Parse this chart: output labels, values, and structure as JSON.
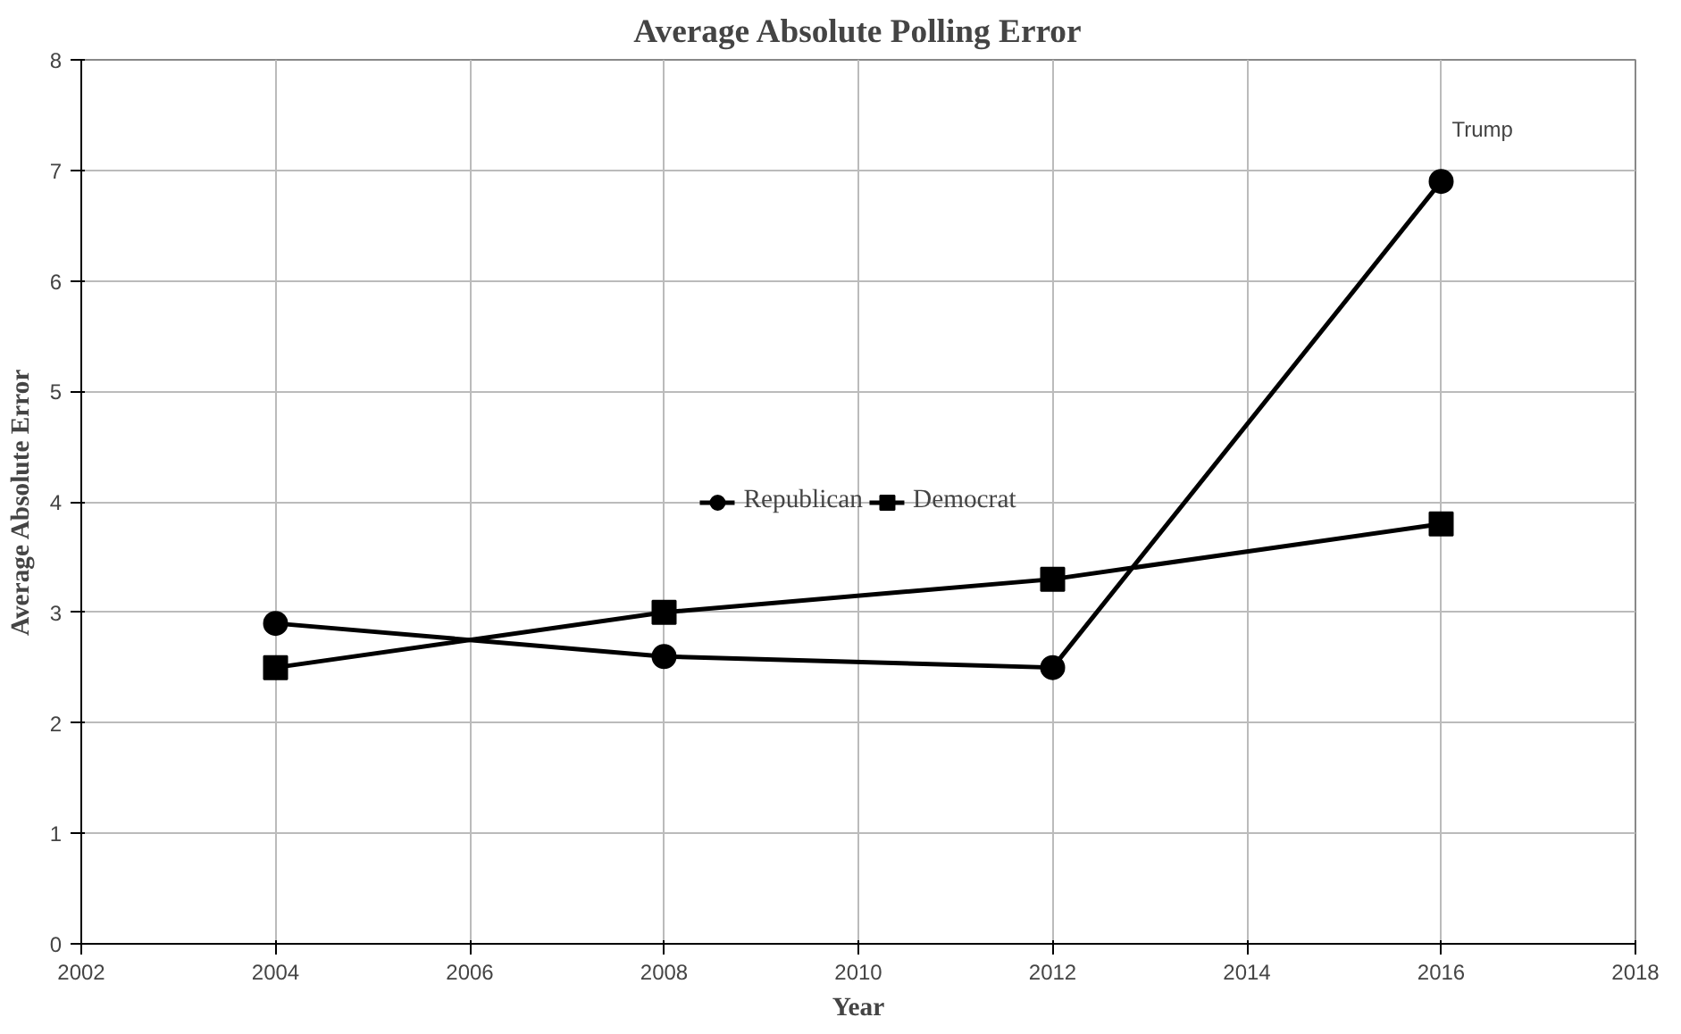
{
  "chart_data": {
    "type": "line",
    "title": "Average Absolute Polling Error",
    "xlabel": "Year",
    "ylabel": "Average Absolute Error",
    "x": [
      2004,
      2008,
      2012,
      2016
    ],
    "series": [
      {
        "name": "Republican",
        "color": "#000000",
        "marker": "circle",
        "values": [
          2.9,
          2.6,
          2.5,
          6.9
        ]
      },
      {
        "name": "Democrat",
        "color": "#000000",
        "marker": "square",
        "values": [
          2.5,
          3.0,
          3.3,
          3.8
        ]
      }
    ],
    "xlim": [
      2002,
      2018
    ],
    "xticks": [
      2002,
      2004,
      2006,
      2008,
      2010,
      2012,
      2014,
      2016,
      2018
    ],
    "ylim": [
      0,
      8
    ],
    "yticks": [
      0,
      1,
      2,
      3,
      4,
      5,
      6,
      7,
      8
    ],
    "grid": true,
    "legend": "center",
    "line_style": "solid",
    "annotations": [
      {
        "text": "Trump",
        "x": 2016,
        "y": 6.9
      }
    ]
  }
}
